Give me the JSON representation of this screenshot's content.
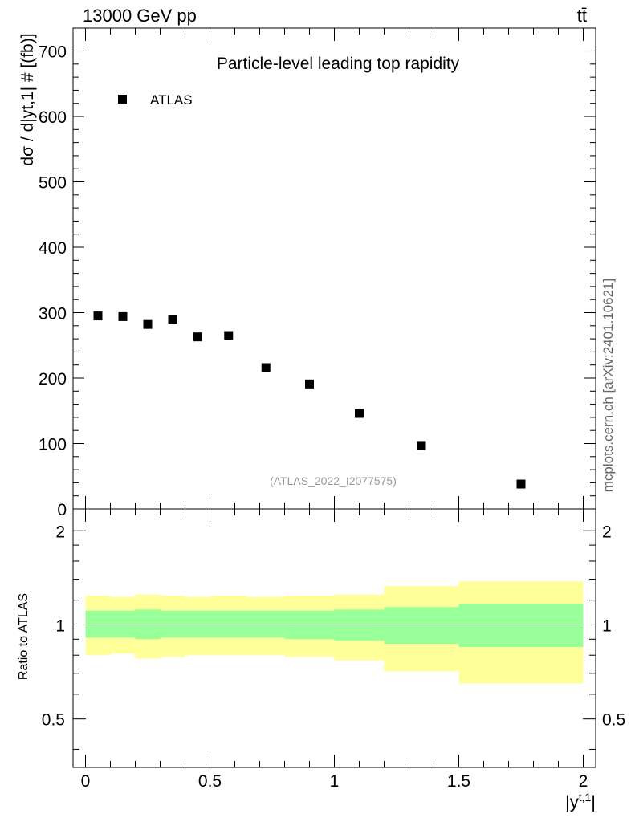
{
  "header": {
    "energy_label": "13000 GeV pp",
    "process_label": "tt̄"
  },
  "side_note": "mcplots.cern.ch [arXiv:2401.10621]",
  "chart_data": [
    {
      "type": "scatter",
      "title": "Particle-level leading top rapidity",
      "ylabel": "dσ / d|y^{t,1}| # [(fb)]",
      "ylabel_display": "dσ / d|yt,1| # [(fb)]",
      "xlabel": "|y^{t,1}|",
      "xlabel_base": "|y",
      "xlabel_sup": "t,1",
      "xlabel_end": "|",
      "xlim": [
        -0.05,
        2.05
      ],
      "ylim": [
        0,
        735
      ],
      "yticks": [
        0,
        100,
        200,
        300,
        400,
        500,
        600,
        700
      ],
      "ytick_labels": [
        "0",
        "100",
        "200",
        "300",
        "400",
        "500",
        "600",
        "700"
      ],
      "legend": [
        {
          "name": "ATLAS",
          "marker": "square",
          "color": "#000000"
        }
      ],
      "legend_position": "top-left",
      "annotation": "(ATLAS_2022_I2077575)",
      "series": [
        {
          "name": "ATLAS",
          "x": [
            0.05,
            0.15,
            0.25,
            0.35,
            0.45,
            0.575,
            0.725,
            0.9,
            1.1,
            1.35,
            1.75
          ],
          "values": [
            295,
            294,
            282,
            290,
            263,
            265,
            216,
            191,
            146,
            97,
            38
          ]
        }
      ]
    },
    {
      "type": "area",
      "ylabel": "Ratio to ATLAS",
      "xlim": [
        -0.05,
        2.05
      ],
      "ylim": [
        0.35,
        2.35
      ],
      "yscale": "log",
      "xticks": [
        0,
        0.5,
        1,
        1.5,
        2
      ],
      "xtick_labels": [
        "0",
        "0.5",
        "1",
        "1.5",
        "2"
      ],
      "yticks": [
        0.5,
        1,
        2
      ],
      "ytick_labels": [
        "0.5",
        "1",
        "2"
      ],
      "reference_line": 1,
      "bins": [
        {
          "x0": 0.0,
          "x1": 0.1,
          "stat_lo": 0.91,
          "stat_hi": 1.11,
          "tot_lo": 0.8,
          "tot_hi": 1.24
        },
        {
          "x0": 0.1,
          "x1": 0.2,
          "stat_lo": 0.91,
          "stat_hi": 1.11,
          "tot_lo": 0.81,
          "tot_hi": 1.23
        },
        {
          "x0": 0.2,
          "x1": 0.3,
          "stat_lo": 0.9,
          "stat_hi": 1.12,
          "tot_lo": 0.78,
          "tot_hi": 1.25
        },
        {
          "x0": 0.3,
          "x1": 0.4,
          "stat_lo": 0.91,
          "stat_hi": 1.11,
          "tot_lo": 0.79,
          "tot_hi": 1.24
        },
        {
          "x0": 0.4,
          "x1": 0.5,
          "stat_lo": 0.91,
          "stat_hi": 1.11,
          "tot_lo": 0.8,
          "tot_hi": 1.23
        },
        {
          "x0": 0.5,
          "x1": 0.65,
          "stat_lo": 0.91,
          "stat_hi": 1.11,
          "tot_lo": 0.8,
          "tot_hi": 1.24
        },
        {
          "x0": 0.65,
          "x1": 0.8,
          "stat_lo": 0.91,
          "stat_hi": 1.11,
          "tot_lo": 0.8,
          "tot_hi": 1.23
        },
        {
          "x0": 0.8,
          "x1": 1.0,
          "stat_lo": 0.9,
          "stat_hi": 1.11,
          "tot_lo": 0.79,
          "tot_hi": 1.24
        },
        {
          "x0": 1.0,
          "x1": 1.2,
          "stat_lo": 0.89,
          "stat_hi": 1.12,
          "tot_lo": 0.77,
          "tot_hi": 1.25
        },
        {
          "x0": 1.2,
          "x1": 1.5,
          "stat_lo": 0.87,
          "stat_hi": 1.14,
          "tot_lo": 0.71,
          "tot_hi": 1.33
        },
        {
          "x0": 1.5,
          "x1": 2.0,
          "stat_lo": 0.85,
          "stat_hi": 1.17,
          "tot_lo": 0.65,
          "tot_hi": 1.38
        }
      ]
    }
  ],
  "colors": {
    "stat_band": "#99ff99",
    "total_band": "#ffff99",
    "marker": "#000000",
    "annotation": "#999999"
  }
}
